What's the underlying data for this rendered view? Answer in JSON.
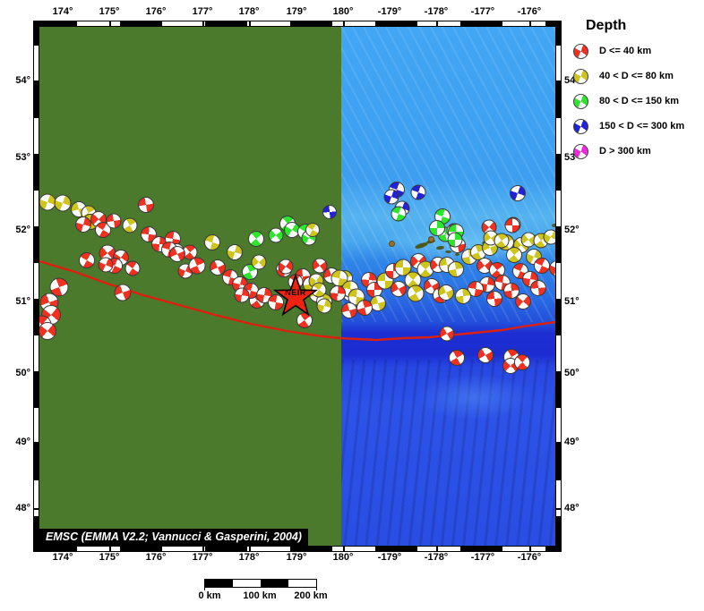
{
  "legend": {
    "title": "Depth",
    "items": [
      {
        "key": "R",
        "label": "D <= 40 km",
        "color": "#f03020"
      },
      {
        "key": "Y",
        "label": "40 < D <= 80 km",
        "color": "#cdc41c"
      },
      {
        "key": "G",
        "label": "80 < D <= 150 km",
        "color": "#2ce62c"
      },
      {
        "key": "B",
        "label": "150 < D <= 300 km",
        "color": "#2222d8"
      },
      {
        "key": "M",
        "label": "D > 300 km",
        "color": "#f028e0"
      }
    ]
  },
  "axes": {
    "lon_labels": [
      "174°",
      "175°",
      "176°",
      "177°",
      "178°",
      "179°",
      "180°",
      "-179°",
      "-178°",
      "-177°",
      "-176°"
    ],
    "lat_labels": [
      "54°",
      "53°",
      "52°",
      "51°",
      "50°",
      "49°",
      "48°"
    ]
  },
  "map": {
    "credit": "EMSC (EMMA V2.2; Vannucci & Gasperini, 2004)",
    "star_label": "NEIR",
    "colors": {
      "land_green": "#4c7a2c",
      "ocean_light": "#42a6f4",
      "ocean_mid": "#2a6ee4",
      "trench_dark": "#1c2cd0",
      "ocean_deep": "#2c52e8",
      "island": "#4a5a1e",
      "volcano": "#96722e",
      "plate_boundary": "#dd1f10",
      "star": "#ee2211"
    },
    "boundary_line": [
      [
        0,
        262
      ],
      [
        40,
        274
      ],
      [
        76,
        287
      ],
      [
        116,
        300
      ],
      [
        156,
        311
      ],
      [
        196,
        322
      ],
      [
        236,
        332
      ],
      [
        276,
        340
      ],
      [
        316,
        346
      ],
      [
        336,
        348
      ],
      [
        356,
        349
      ],
      [
        376,
        350
      ],
      [
        406,
        348
      ],
      [
        436,
        347
      ],
      [
        476,
        343
      ],
      [
        516,
        339
      ],
      [
        546,
        334
      ],
      [
        576,
        330
      ]
    ],
    "islands": [
      [
        426,
        244,
        15,
        5,
        -18
      ],
      [
        437,
        240,
        10,
        4,
        -12
      ],
      [
        447,
        247,
        9,
        4,
        -8
      ],
      [
        456,
        251,
        7,
        3,
        0
      ],
      [
        466,
        254,
        5,
        3,
        0
      ],
      [
        476,
        253,
        6,
        3,
        0
      ],
      [
        500,
        240,
        12,
        5,
        -15
      ],
      [
        509,
        243,
        8,
        4,
        0
      ],
      [
        520,
        246,
        12,
        5,
        -12
      ],
      [
        531,
        240,
        11,
        4,
        -18
      ],
      [
        541,
        245,
        9,
        4,
        -8
      ],
      [
        552,
        235,
        8,
        4,
        -15
      ],
      [
        561,
        233,
        10,
        5,
        -18
      ],
      [
        571,
        238,
        13,
        5,
        -12
      ],
      [
        581,
        229,
        9,
        7,
        0
      ],
      [
        575,
        222,
        6,
        4,
        0
      ]
    ],
    "volcanoes": [
      [
        393,
        242
      ],
      [
        437,
        237
      ],
      [
        509,
        237
      ]
    ],
    "beachballs": [
      [
        9,
        196,
        19,
        "Y",
        20
      ],
      [
        26,
        197,
        19,
        "Y",
        200
      ],
      [
        44,
        204,
        18,
        "Y",
        75
      ],
      [
        55,
        208,
        17,
        "Y",
        150
      ],
      [
        57,
        218,
        18,
        "Y",
        310
      ],
      [
        66,
        215,
        18,
        "R",
        45
      ],
      [
        71,
        227,
        18,
        "R",
        120
      ],
      [
        83,
        217,
        17,
        "R",
        260
      ],
      [
        119,
        199,
        18,
        "R",
        80
      ],
      [
        101,
        222,
        17,
        "Y",
        330
      ],
      [
        49,
        221,
        18,
        "R",
        15
      ],
      [
        122,
        232,
        18,
        "R",
        95
      ],
      [
        134,
        243,
        18,
        "R",
        185
      ],
      [
        149,
        237,
        18,
        "R",
        280
      ],
      [
        153,
        251,
        18,
        "R",
        60
      ],
      [
        168,
        252,
        17,
        "R",
        140
      ],
      [
        76,
        253,
        19,
        "R",
        230
      ],
      [
        91,
        258,
        18,
        "R",
        35
      ],
      [
        84,
        267,
        18,
        "R",
        115
      ],
      [
        74,
        266,
        17,
        "R",
        205
      ],
      [
        53,
        261,
        18,
        "R",
        300
      ],
      [
        93,
        297,
        19,
        "R",
        70
      ],
      [
        22,
        291,
        21,
        "R",
        160
      ],
      [
        11,
        308,
        21,
        "R",
        250
      ],
      [
        13,
        322,
        22,
        "R",
        40
      ],
      [
        3,
        333,
        21,
        "R",
        130
      ],
      [
        9,
        340,
        20,
        "R",
        220
      ],
      [
        104,
        270,
        17,
        "R",
        305
      ],
      [
        163,
        273,
        17,
        "R",
        25
      ],
      [
        193,
        241,
        18,
        "Y",
        105
      ],
      [
        218,
        252,
        18,
        "Y",
        195
      ],
      [
        145,
        249,
        18,
        "R",
        285
      ],
      [
        154,
        254,
        18,
        "R",
        65
      ],
      [
        176,
        267,
        19,
        "R",
        155
      ],
      [
        199,
        269,
        18,
        "R",
        245
      ],
      [
        235,
        274,
        18,
        "G",
        335
      ],
      [
        245,
        263,
        17,
        "Y",
        50
      ],
      [
        242,
        237,
        18,
        "G",
        140
      ],
      [
        264,
        233,
        17,
        "G",
        230
      ],
      [
        277,
        220,
        18,
        "G",
        320
      ],
      [
        282,
        227,
        18,
        "G",
        30
      ],
      [
        297,
        229,
        18,
        "G",
        120
      ],
      [
        301,
        236,
        17,
        "G",
        210
      ],
      [
        305,
        227,
        16,
        "Y",
        300
      ],
      [
        324,
        207,
        16,
        "B",
        85
      ],
      [
        273,
        271,
        18,
        "R",
        175
      ],
      [
        294,
        279,
        18,
        "R",
        265
      ],
      [
        303,
        288,
        18,
        "Y",
        355
      ],
      [
        310,
        299,
        18,
        "Y",
        70
      ],
      [
        318,
        307,
        18,
        "Y",
        160
      ],
      [
        326,
        278,
        18,
        "R",
        250
      ],
      [
        341,
        281,
        18,
        "Y",
        340
      ],
      [
        347,
        298,
        18,
        "R",
        55
      ],
      [
        296,
        328,
        18,
        "R",
        145
      ],
      [
        313,
        267,
        17,
        "R",
        235
      ],
      [
        243,
        306,
        18,
        "R",
        325
      ],
      [
        275,
        268,
        17,
        "R",
        35
      ],
      [
        286,
        285,
        17,
        "R",
        125
      ],
      [
        309,
        284,
        17,
        "Y",
        215
      ],
      [
        312,
        294,
        17,
        "Y",
        305
      ],
      [
        318,
        312,
        17,
        "Y",
        15
      ],
      [
        213,
        280,
        18,
        "R",
        105
      ],
      [
        224,
        288,
        18,
        "R",
        195
      ],
      [
        236,
        295,
        18,
        "R",
        285
      ],
      [
        251,
        300,
        18,
        "R",
        10
      ],
      [
        264,
        308,
        18,
        "R",
        100
      ],
      [
        226,
        300,
        17,
        "R",
        190
      ],
      [
        335,
        281,
        19,
        "Y",
        280
      ],
      [
        368,
        283,
        18,
        "R",
        5
      ],
      [
        347,
        293,
        19,
        "Y",
        95
      ],
      [
        333,
        298,
        18,
        "R",
        185
      ],
      [
        354,
        302,
        19,
        "Y",
        275
      ],
      [
        374,
        294,
        18,
        "R",
        0
      ],
      [
        386,
        284,
        19,
        "Y",
        90
      ],
      [
        395,
        273,
        18,
        "R",
        180
      ],
      [
        406,
        269,
        19,
        "Y",
        270
      ],
      [
        423,
        262,
        18,
        "R",
        45
      ],
      [
        431,
        271,
        19,
        "Y",
        135
      ],
      [
        445,
        266,
        18,
        "R",
        225
      ],
      [
        417,
        283,
        19,
        "Y",
        315
      ],
      [
        401,
        293,
        18,
        "R",
        60
      ],
      [
        420,
        298,
        19,
        "Y",
        150
      ],
      [
        438,
        290,
        18,
        "R",
        240
      ],
      [
        448,
        300,
        18,
        "R",
        330
      ],
      [
        378,
        309,
        18,
        "Y",
        75
      ],
      [
        363,
        314,
        18,
        "R",
        165
      ],
      [
        346,
        317,
        18,
        "R",
        255
      ],
      [
        453,
        232,
        17,
        "G",
        345
      ],
      [
        467,
        244,
        18,
        "R",
        80
      ],
      [
        480,
        257,
        18,
        "Y",
        170
      ],
      [
        455,
        266,
        18,
        "Y",
        260
      ],
      [
        465,
        271,
        18,
        "Y",
        350
      ],
      [
        454,
        297,
        18,
        "Y",
        65
      ],
      [
        490,
        252,
        18,
        "Y",
        155
      ],
      [
        503,
        247,
        18,
        "Y",
        245
      ],
      [
        521,
        241,
        18,
        "Y",
        335
      ],
      [
        538,
        244,
        18,
        "Y",
        50
      ],
      [
        530,
        255,
        18,
        "Y",
        140
      ],
      [
        497,
        267,
        18,
        "R",
        230
      ],
      [
        511,
        272,
        18,
        "R",
        320
      ],
      [
        552,
        257,
        18,
        "Y",
        25
      ],
      [
        561,
        267,
        18,
        "R",
        115
      ],
      [
        578,
        270,
        18,
        "R",
        205
      ],
      [
        537,
        273,
        18,
        "R",
        295
      ],
      [
        548,
        282,
        18,
        "R",
        10
      ],
      [
        517,
        286,
        18,
        "R",
        100
      ],
      [
        500,
        288,
        18,
        "R",
        190
      ],
      [
        487,
        293,
        18,
        "R",
        280
      ],
      [
        527,
        295,
        18,
        "R",
        355
      ],
      [
        557,
        292,
        18,
        "R",
        85
      ],
      [
        473,
        301,
        18,
        "Y",
        175
      ],
      [
        508,
        304,
        18,
        "R",
        265
      ],
      [
        540,
        307,
        18,
        "R",
        40
      ],
      [
        529,
        221,
        17,
        "R",
        130
      ],
      [
        502,
        224,
        17,
        "R",
        220
      ],
      [
        463,
        228,
        17,
        "R",
        310
      ],
      [
        504,
        236,
        17,
        "Y",
        55
      ],
      [
        516,
        239,
        17,
        "Y",
        145
      ],
      [
        546,
        238,
        17,
        "Y",
        235
      ],
      [
        560,
        239,
        17,
        "Y",
        325
      ],
      [
        571,
        235,
        17,
        "Y",
        30
      ],
      [
        399,
        182,
        18,
        "B",
        110
      ],
      [
        393,
        190,
        17,
        "B",
        200
      ],
      [
        423,
        185,
        17,
        "B",
        290
      ],
      [
        405,
        203,
        17,
        "B",
        20
      ],
      [
        401,
        209,
        17,
        "G",
        110
      ],
      [
        534,
        186,
        18,
        "B",
        200
      ],
      [
        450,
        212,
        18,
        "G",
        290
      ],
      [
        444,
        225,
        18,
        "G",
        0
      ],
      [
        465,
        229,
        18,
        "G",
        90
      ],
      [
        464,
        238,
        17,
        "G",
        180
      ],
      [
        528,
        222,
        17,
        "R",
        270
      ],
      [
        455,
        343,
        17,
        "R",
        60
      ],
      [
        466,
        370,
        18,
        "R",
        150
      ],
      [
        498,
        367,
        18,
        "R",
        240
      ],
      [
        527,
        369,
        18,
        "R",
        330
      ],
      [
        526,
        379,
        18,
        "R",
        45
      ],
      [
        539,
        375,
        18,
        "R",
        135
      ]
    ]
  },
  "scalebar": {
    "labels": [
      "0 km",
      "100 km",
      "200 km"
    ]
  }
}
